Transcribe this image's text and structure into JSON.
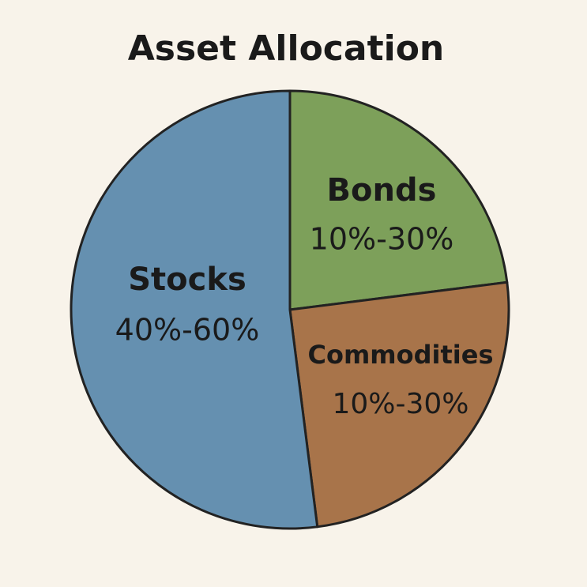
{
  "chart_data": {
    "type": "pie",
    "title": "Asset Allocation",
    "categories": [
      "Bonds",
      "Commodities",
      "Stocks"
    ],
    "ranges": [
      "10%-30%",
      "10%-30%",
      "40%-60%"
    ],
    "values": [
      23,
      25,
      52
    ],
    "colors": [
      "#7da05a",
      "#a8744a",
      "#6590b0"
    ]
  }
}
